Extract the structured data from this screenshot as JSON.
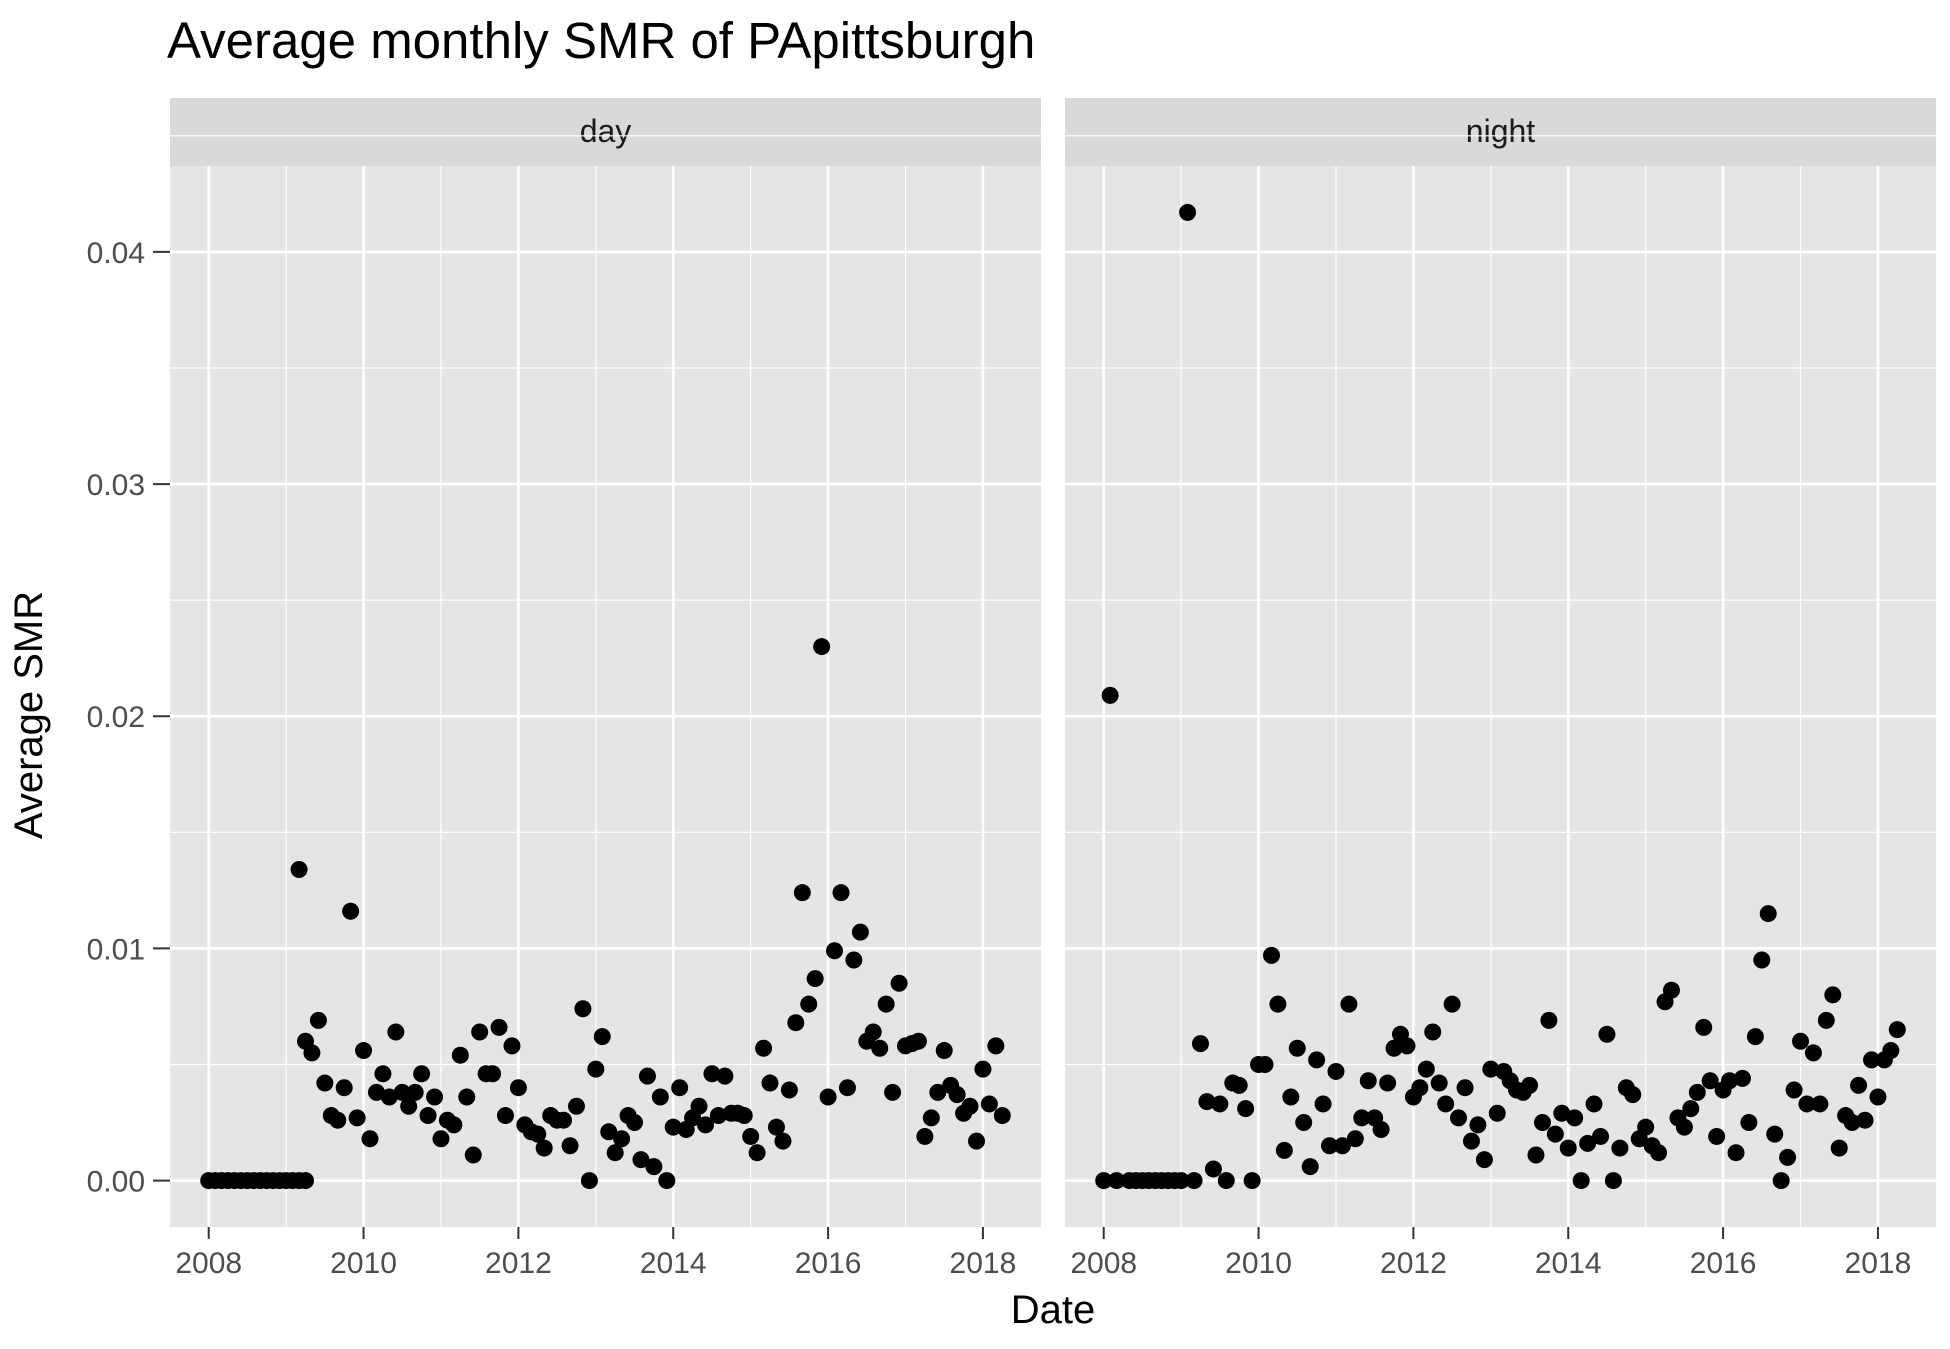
{
  "chart_data": {
    "type": "scatter",
    "title": "Average monthly SMR of PApittsburgh",
    "xlabel": "Date",
    "ylabel": "Average SMR",
    "facets": [
      "day",
      "night"
    ],
    "x_ticks": [
      "2008",
      "2010",
      "2012",
      "2014",
      "2016",
      "2018"
    ],
    "y_ticks": [
      "0.00",
      "0.01",
      "0.02",
      "0.03",
      "0.04"
    ],
    "xlim": [
      2007.5,
      2018.75
    ],
    "ylim": [
      -0.002,
      0.0437
    ],
    "grid": true,
    "legend": "none",
    "panels": [
      {
        "name": "day",
        "points": [
          [
            2008.0,
            0.0
          ],
          [
            2008.083,
            0.0
          ],
          [
            2008.167,
            0.0
          ],
          [
            2008.25,
            0.0
          ],
          [
            2008.333,
            0.0
          ],
          [
            2008.417,
            0.0
          ],
          [
            2008.5,
            0.0
          ],
          [
            2008.583,
            0.0
          ],
          [
            2008.667,
            0.0
          ],
          [
            2008.75,
            0.0
          ],
          [
            2008.833,
            0.0
          ],
          [
            2008.917,
            0.0
          ],
          [
            2009.0,
            0.0
          ],
          [
            2009.083,
            0.0
          ],
          [
            2009.167,
            0.0
          ],
          [
            2009.25,
            0.0
          ],
          [
            2009.167,
            0.0134
          ],
          [
            2009.25,
            0.006
          ],
          [
            2009.333,
            0.0055
          ],
          [
            2009.417,
            0.0069
          ],
          [
            2009.5,
            0.0042
          ],
          [
            2009.583,
            0.0028
          ],
          [
            2009.667,
            0.0026
          ],
          [
            2009.75,
            0.004
          ],
          [
            2009.833,
            0.0116
          ],
          [
            2009.917,
            0.0027
          ],
          [
            2010.0,
            0.0056
          ],
          [
            2010.083,
            0.0018
          ],
          [
            2010.167,
            0.0038
          ],
          [
            2010.25,
            0.0046
          ],
          [
            2010.333,
            0.0036
          ],
          [
            2010.417,
            0.0064
          ],
          [
            2010.5,
            0.0038
          ],
          [
            2010.583,
            0.0032
          ],
          [
            2010.667,
            0.0038
          ],
          [
            2010.75,
            0.0046
          ],
          [
            2010.833,
            0.0028
          ],
          [
            2010.917,
            0.0036
          ],
          [
            2011.0,
            0.0018
          ],
          [
            2011.083,
            0.0026
          ],
          [
            2011.167,
            0.0024
          ],
          [
            2011.25,
            0.0054
          ],
          [
            2011.333,
            0.0036
          ],
          [
            2011.417,
            0.0011
          ],
          [
            2011.5,
            0.0064
          ],
          [
            2011.583,
            0.0046
          ],
          [
            2011.667,
            0.0046
          ],
          [
            2011.75,
            0.0066
          ],
          [
            2011.833,
            0.0028
          ],
          [
            2011.917,
            0.0058
          ],
          [
            2012.0,
            0.004
          ],
          [
            2012.083,
            0.0024
          ],
          [
            2012.167,
            0.0021
          ],
          [
            2012.25,
            0.002
          ],
          [
            2012.333,
            0.0014
          ],
          [
            2012.417,
            0.0028
          ],
          [
            2012.5,
            0.0026
          ],
          [
            2012.583,
            0.0026
          ],
          [
            2012.667,
            0.0015
          ],
          [
            2012.75,
            0.0032
          ],
          [
            2012.833,
            0.0074
          ],
          [
            2012.917,
            0.0
          ],
          [
            2013.0,
            0.0048
          ],
          [
            2013.083,
            0.0062
          ],
          [
            2013.167,
            0.0021
          ],
          [
            2013.25,
            0.0012
          ],
          [
            2013.333,
            0.0018
          ],
          [
            2013.417,
            0.0028
          ],
          [
            2013.5,
            0.0025
          ],
          [
            2013.583,
            0.0009
          ],
          [
            2013.667,
            0.0045
          ],
          [
            2013.75,
            0.0006
          ],
          [
            2013.833,
            0.0036
          ],
          [
            2013.917,
            0.0
          ],
          [
            2014.0,
            0.0023
          ],
          [
            2014.083,
            0.004
          ],
          [
            2014.167,
            0.0022
          ],
          [
            2014.25,
            0.0027
          ],
          [
            2014.333,
            0.0032
          ],
          [
            2014.417,
            0.0024
          ],
          [
            2014.5,
            0.0046
          ],
          [
            2014.583,
            0.0028
          ],
          [
            2014.667,
            0.0045
          ],
          [
            2014.75,
            0.0029
          ],
          [
            2014.833,
            0.0029
          ],
          [
            2014.917,
            0.0028
          ],
          [
            2015.0,
            0.0019
          ],
          [
            2015.083,
            0.0012
          ],
          [
            2015.167,
            0.0057
          ],
          [
            2015.25,
            0.0042
          ],
          [
            2015.333,
            0.0023
          ],
          [
            2015.417,
            0.0017
          ],
          [
            2015.5,
            0.0039
          ],
          [
            2015.583,
            0.0068
          ],
          [
            2015.667,
            0.0124
          ],
          [
            2015.75,
            0.0076
          ],
          [
            2015.833,
            0.0087
          ],
          [
            2015.917,
            0.023
          ],
          [
            2016.0,
            0.0036
          ],
          [
            2016.083,
            0.0099
          ],
          [
            2016.167,
            0.0124
          ],
          [
            2016.25,
            0.004
          ],
          [
            2016.333,
            0.0095
          ],
          [
            2016.417,
            0.0107
          ],
          [
            2016.5,
            0.006
          ],
          [
            2016.583,
            0.0064
          ],
          [
            2016.667,
            0.0057
          ],
          [
            2016.75,
            0.0076
          ],
          [
            2016.833,
            0.0038
          ],
          [
            2016.917,
            0.0085
          ],
          [
            2017.0,
            0.0058
          ],
          [
            2017.083,
            0.0059
          ],
          [
            2017.167,
            0.006
          ],
          [
            2017.25,
            0.0019
          ],
          [
            2017.333,
            0.0027
          ],
          [
            2017.417,
            0.0038
          ],
          [
            2017.5,
            0.0056
          ],
          [
            2017.583,
            0.0041
          ],
          [
            2017.667,
            0.0037
          ],
          [
            2017.75,
            0.0029
          ],
          [
            2017.833,
            0.0032
          ],
          [
            2017.917,
            0.0017
          ],
          [
            2018.0,
            0.0048
          ],
          [
            2018.083,
            0.0033
          ],
          [
            2018.167,
            0.0058
          ],
          [
            2018.25,
            0.0028
          ]
        ]
      },
      {
        "name": "night",
        "points": [
          [
            2008.0,
            0.0
          ],
          [
            2008.083,
            0.0209
          ],
          [
            2008.167,
            0.0
          ],
          [
            2008.333,
            0.0
          ],
          [
            2008.417,
            0.0
          ],
          [
            2008.5,
            0.0
          ],
          [
            2008.583,
            0.0
          ],
          [
            2008.667,
            0.0
          ],
          [
            2008.75,
            0.0
          ],
          [
            2008.833,
            0.0
          ],
          [
            2008.917,
            0.0
          ],
          [
            2009.0,
            0.0
          ],
          [
            2009.083,
            0.0417
          ],
          [
            2009.167,
            0.0
          ],
          [
            2009.25,
            0.0059
          ],
          [
            2009.333,
            0.0034
          ],
          [
            2009.417,
            0.0005
          ],
          [
            2009.5,
            0.0033
          ],
          [
            2009.583,
            0.0
          ],
          [
            2009.667,
            0.0042
          ],
          [
            2009.75,
            0.0041
          ],
          [
            2009.833,
            0.0031
          ],
          [
            2009.917,
            0.0
          ],
          [
            2010.0,
            0.005
          ],
          [
            2010.083,
            0.005
          ],
          [
            2010.167,
            0.0097
          ],
          [
            2010.25,
            0.0076
          ],
          [
            2010.333,
            0.0013
          ],
          [
            2010.417,
            0.0036
          ],
          [
            2010.5,
            0.0057
          ],
          [
            2010.583,
            0.0025
          ],
          [
            2010.667,
            0.0006
          ],
          [
            2010.75,
            0.0052
          ],
          [
            2010.833,
            0.0033
          ],
          [
            2010.917,
            0.0015
          ],
          [
            2011.0,
            0.0047
          ],
          [
            2011.083,
            0.0015
          ],
          [
            2011.167,
            0.0076
          ],
          [
            2011.25,
            0.0018
          ],
          [
            2011.333,
            0.0027
          ],
          [
            2011.417,
            0.0043
          ],
          [
            2011.5,
            0.0027
          ],
          [
            2011.583,
            0.0022
          ],
          [
            2011.667,
            0.0042
          ],
          [
            2011.75,
            0.0057
          ],
          [
            2011.833,
            0.0063
          ],
          [
            2011.917,
            0.0058
          ],
          [
            2012.0,
            0.0036
          ],
          [
            2012.083,
            0.004
          ],
          [
            2012.167,
            0.0048
          ],
          [
            2012.25,
            0.0064
          ],
          [
            2012.333,
            0.0042
          ],
          [
            2012.417,
            0.0033
          ],
          [
            2012.5,
            0.0076
          ],
          [
            2012.583,
            0.0027
          ],
          [
            2012.667,
            0.004
          ],
          [
            2012.75,
            0.0017
          ],
          [
            2012.833,
            0.0024
          ],
          [
            2012.917,
            0.0009
          ],
          [
            2013.0,
            0.0048
          ],
          [
            2013.083,
            0.0029
          ],
          [
            2013.167,
            0.0047
          ],
          [
            2013.25,
            0.0043
          ],
          [
            2013.333,
            0.0039
          ],
          [
            2013.417,
            0.0038
          ],
          [
            2013.5,
            0.0041
          ],
          [
            2013.583,
            0.0011
          ],
          [
            2013.667,
            0.0025
          ],
          [
            2013.75,
            0.0069
          ],
          [
            2013.833,
            0.002
          ],
          [
            2013.917,
            0.0029
          ],
          [
            2014.0,
            0.0014
          ],
          [
            2014.083,
            0.0027
          ],
          [
            2014.167,
            0.0
          ],
          [
            2014.25,
            0.0016
          ],
          [
            2014.333,
            0.0033
          ],
          [
            2014.417,
            0.0019
          ],
          [
            2014.5,
            0.0063
          ],
          [
            2014.583,
            0.0
          ],
          [
            2014.667,
            0.0014
          ],
          [
            2014.75,
            0.004
          ],
          [
            2014.833,
            0.0037
          ],
          [
            2014.917,
            0.0018
          ],
          [
            2015.0,
            0.0023
          ],
          [
            2015.083,
            0.0015
          ],
          [
            2015.167,
            0.0012
          ],
          [
            2015.25,
            0.0077
          ],
          [
            2015.333,
            0.0082
          ],
          [
            2015.417,
            0.0027
          ],
          [
            2015.5,
            0.0023
          ],
          [
            2015.583,
            0.0031
          ],
          [
            2015.667,
            0.0038
          ],
          [
            2015.75,
            0.0066
          ],
          [
            2015.833,
            0.0043
          ],
          [
            2015.917,
            0.0019
          ],
          [
            2016.0,
            0.0039
          ],
          [
            2016.083,
            0.0043
          ],
          [
            2016.167,
            0.0012
          ],
          [
            2016.25,
            0.0044
          ],
          [
            2016.333,
            0.0025
          ],
          [
            2016.417,
            0.0062
          ],
          [
            2016.5,
            0.0095
          ],
          [
            2016.583,
            0.0115
          ],
          [
            2016.667,
            0.002
          ],
          [
            2016.75,
            0.0
          ],
          [
            2016.833,
            0.001
          ],
          [
            2016.917,
            0.0039
          ],
          [
            2017.0,
            0.006
          ],
          [
            2017.083,
            0.0033
          ],
          [
            2017.167,
            0.0055
          ],
          [
            2017.25,
            0.0033
          ],
          [
            2017.333,
            0.0069
          ],
          [
            2017.417,
            0.008
          ],
          [
            2017.5,
            0.0014
          ],
          [
            2017.583,
            0.0028
          ],
          [
            2017.667,
            0.0025
          ],
          [
            2017.75,
            0.0041
          ],
          [
            2017.833,
            0.0026
          ],
          [
            2017.917,
            0.0052
          ],
          [
            2018.0,
            0.0036
          ],
          [
            2018.083,
            0.0052
          ],
          [
            2018.167,
            0.0056
          ],
          [
            2018.25,
            0.0065
          ]
        ]
      }
    ]
  },
  "colors": {
    "panel_background": "#e5e5e5",
    "strip_background": "#d9d9d9",
    "grid": "#ffffff",
    "point": "#000000",
    "tick": "#333333"
  }
}
